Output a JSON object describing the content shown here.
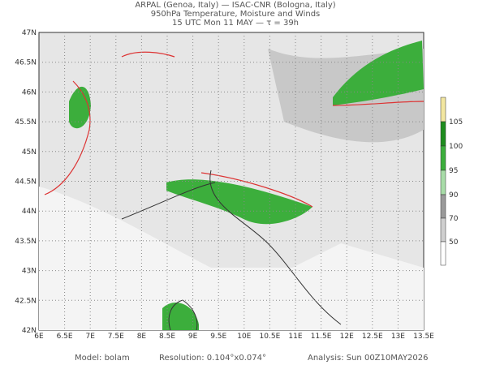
{
  "header": {
    "lines": [
      "ARPAL (Genoa, Italy)  —  ISAC-CNR (Bologna, Italy)",
      "950hPa Temperature, Moisture and Winds",
      "15 UTC Mon 11 MAY  —  τ = 39h"
    ]
  },
  "axes": {
    "lon": [
      "6E",
      "6.5E",
      "7E",
      "7.5E",
      "8E",
      "8.5E",
      "9E",
      "9.5E",
      "10E",
      "10.5E",
      "11E",
      "11.5E",
      "12E",
      "12.5E",
      "13E",
      "13.5E"
    ],
    "lat": [
      "47N",
      "46.5N",
      "46N",
      "45.5N",
      "45N",
      "44.5N",
      "44N",
      "43.5N",
      "43N",
      "42.5N",
      "42N"
    ]
  },
  "colorbar": {
    "labels": [
      "105",
      "100",
      "95",
      "90",
      "70",
      "50"
    ]
  },
  "footer": {
    "model": "Model:  bolam",
    "resolution": "Resolution:  0.104°x0.074°",
    "analysis": "Analysis:  Sun  00Z10MAY2026"
  }
}
